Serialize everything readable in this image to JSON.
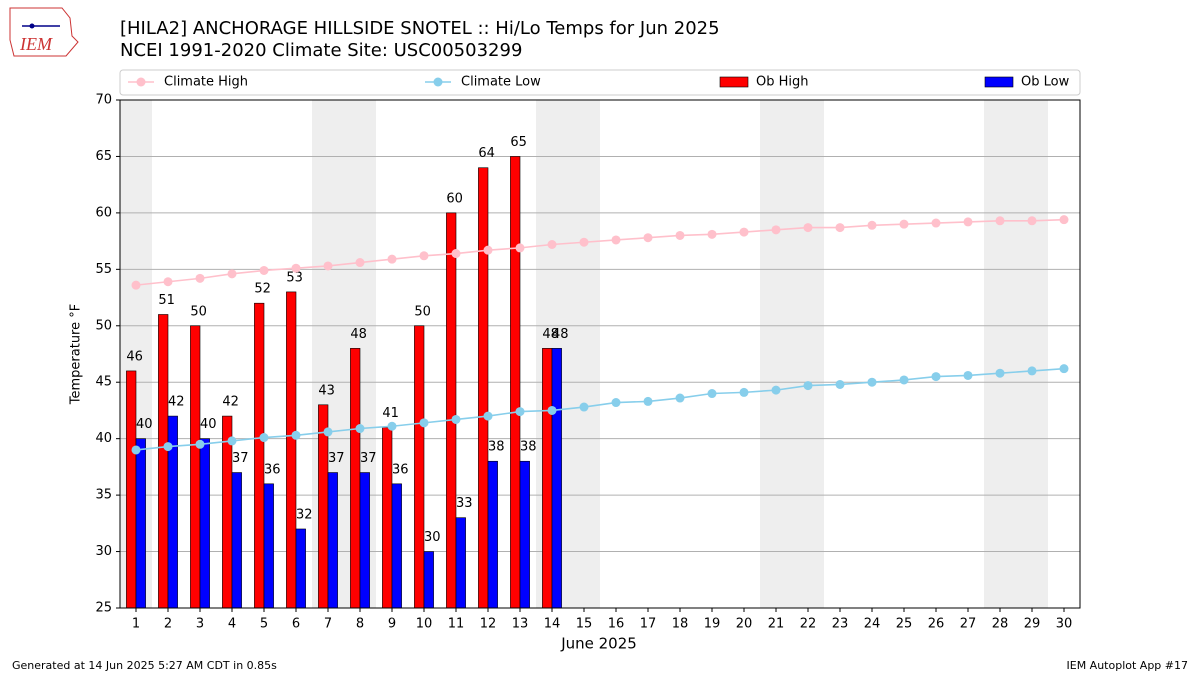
{
  "logo": "IEM",
  "chart_data": {
    "type": "bar",
    "title": "[HILA2] ANCHORAGE HILLSIDE SNOTEL :: Hi/Lo Temps for Jun 2025",
    "subtitle": "NCEI 1991-2020 Climate Site: USC00503299",
    "xlabel": "June 2025",
    "ylabel": "Temperature °F",
    "x": [
      1,
      2,
      3,
      4,
      5,
      6,
      7,
      8,
      9,
      10,
      11,
      12,
      13,
      14,
      15,
      16,
      17,
      18,
      19,
      20,
      21,
      22,
      23,
      24,
      25,
      26,
      27,
      28,
      29,
      30
    ],
    "xlim": [
      0.5,
      30.5
    ],
    "xticks": [
      1,
      2,
      3,
      4,
      5,
      6,
      7,
      8,
      9,
      10,
      11,
      12,
      13,
      14,
      15,
      16,
      17,
      18,
      19,
      20,
      21,
      22,
      23,
      24,
      25,
      26,
      27,
      28,
      29,
      30
    ],
    "ylim": [
      25,
      70
    ],
    "yticks": [
      25,
      30,
      35,
      40,
      45,
      50,
      55,
      60,
      65,
      70
    ],
    "grid": true,
    "series": [
      {
        "name": "Climate High",
        "kind": "line",
        "color": "#ffc0cb",
        "values": [
          53.6,
          53.9,
          54.2,
          54.6,
          54.9,
          55.1,
          55.3,
          55.6,
          55.9,
          56.2,
          56.4,
          56.7,
          56.9,
          57.2,
          57.4,
          57.6,
          57.8,
          58.0,
          58.1,
          58.3,
          58.5,
          58.7,
          58.7,
          58.9,
          59.0,
          59.1,
          59.2,
          59.3,
          59.3,
          59.4
        ]
      },
      {
        "name": "Climate Low",
        "kind": "line",
        "color": "#87ceeb",
        "values": [
          39.0,
          39.3,
          39.5,
          39.8,
          40.1,
          40.3,
          40.6,
          40.9,
          41.1,
          41.4,
          41.7,
          42.0,
          42.4,
          42.5,
          42.8,
          43.2,
          43.3,
          43.6,
          44.0,
          44.1,
          44.3,
          44.7,
          44.8,
          45.0,
          45.2,
          45.5,
          45.6,
          45.8,
          46.0,
          46.2
        ]
      },
      {
        "name": "Ob High",
        "kind": "bar",
        "color": "#ff0000",
        "values": [
          46,
          51,
          50,
          42,
          52,
          53,
          43,
          48,
          41,
          50,
          60,
          64,
          65,
          48,
          null,
          null,
          null,
          null,
          null,
          null,
          null,
          null,
          null,
          null,
          null,
          null,
          null,
          null,
          null,
          null
        ]
      },
      {
        "name": "Ob Low",
        "kind": "bar",
        "color": "#0000ff",
        "values": [
          40,
          42,
          40,
          37,
          36,
          32,
          37,
          37,
          36,
          30,
          33,
          38,
          38,
          48,
          null,
          null,
          null,
          null,
          null,
          null,
          null,
          null,
          null,
          null,
          null,
          null,
          null,
          null,
          null,
          null
        ]
      }
    ],
    "footer_left": "Generated at 14 Jun 2025 5:27 AM CDT in 0.85s",
    "footer_right": "IEM Autoplot App #17"
  }
}
